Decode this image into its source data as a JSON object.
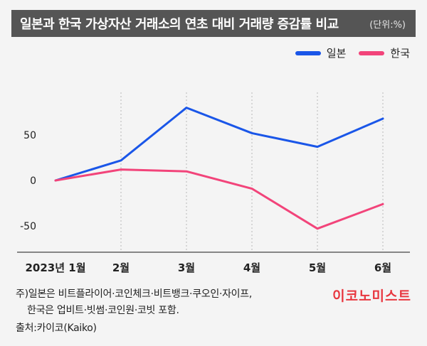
{
  "header": {
    "title": "일본과 한국 가상자산 거래소의 연초 대비 거래량 증감률 비교",
    "unit": "(단위:%)"
  },
  "legend": [
    {
      "label": "일본",
      "color": "#1a56e8"
    },
    {
      "label": "한국",
      "color": "#f2447a"
    }
  ],
  "chart_data": {
    "type": "line",
    "categories": [
      "2023년 1월",
      "2월",
      "3월",
      "4월",
      "5월",
      "6월"
    ],
    "series": [
      {
        "name": "일본",
        "color": "#1a56e8",
        "values": [
          0,
          22,
          80,
          52,
          37,
          68
        ]
      },
      {
        "name": "한국",
        "color": "#f2447a",
        "values": [
          0,
          12,
          10,
          -9,
          -53,
          -26
        ]
      }
    ],
    "yticks": [
      50,
      0,
      -50
    ],
    "ylim": [
      -78,
      125
    ],
    "grid": "vertical-dotted",
    "legend_position": "top-right"
  },
  "footnote": {
    "line1": "주)일본은 비트플라이어·코인체크·비트뱅크·쿠오인·자이프,",
    "line2": "한국은 업비트·빗썸·코인원·코빗 포함.",
    "source": "출처:카이코(Kaiko)"
  },
  "brand": "이코노미스트"
}
